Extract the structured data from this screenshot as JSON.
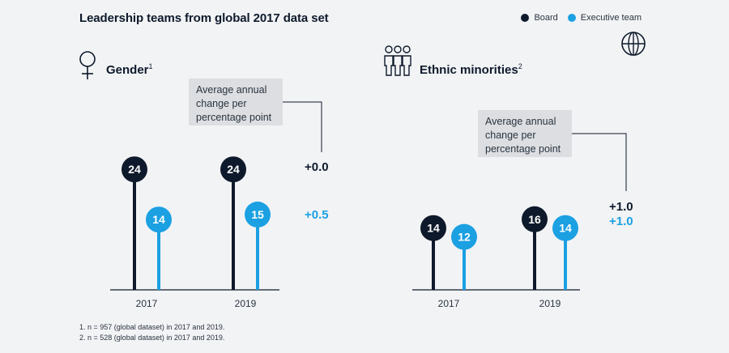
{
  "title": "Leadership teams from global 2017 data set",
  "legend": {
    "board": "Board",
    "executive": "Executive team"
  },
  "colors": {
    "board": "#0e1a2b",
    "executive": "#1ba0e2",
    "baseline": "#0e1a2b",
    "callout_bg": "#dcdee1"
  },
  "callout_text": [
    "Average annual",
    "change per",
    "percentage point"
  ],
  "footnotes": [
    "1.   n = 957 (global dataset) in 2017  and 2019.",
    "2.  n = 528 (global dataset) in 2017 and 2019."
  ],
  "chart_data": [
    {
      "type": "lollipop",
      "title": "Gender",
      "title_sup": "1",
      "icon": "female-symbol-icon",
      "categories": [
        "2017",
        "2019"
      ],
      "series": [
        {
          "name": "Board",
          "values": [
            24,
            24
          ]
        },
        {
          "name": "Executive team",
          "values": [
            14,
            15
          ]
        }
      ],
      "change": {
        "board": "+0.0",
        "executive": "+0.5"
      }
    },
    {
      "type": "lollipop",
      "title": "Ethnic minorities",
      "title_sup": "2",
      "icon": "group-people-icon",
      "categories": [
        "2017",
        "2019"
      ],
      "series": [
        {
          "name": "Board",
          "values": [
            14,
            16
          ]
        },
        {
          "name": "Executive team",
          "values": [
            12,
            14
          ]
        }
      ],
      "change": {
        "board": "+1.0",
        "executive": "+1.0"
      }
    }
  ]
}
